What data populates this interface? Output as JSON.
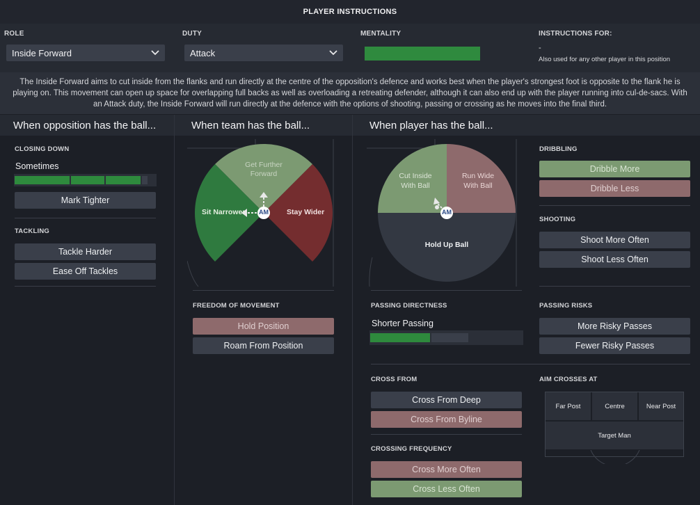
{
  "title": "PLAYER INSTRUCTIONS",
  "role": {
    "label": "ROLE",
    "value": "Inside Forward"
  },
  "duty": {
    "label": "DUTY",
    "value": "Attack"
  },
  "mentality": {
    "label": "MENTALITY",
    "level": 0.75,
    "color": "#2f8a3e"
  },
  "instructions_for": {
    "label": "INSTRUCTIONS FOR:",
    "value": "-",
    "note": "Also used for any other player in this position"
  },
  "description": "The Inside Forward aims to cut inside from the flanks and run directly at the centre of the opposition's defence and works best when the player's strongest foot is opposite to the flank he is playing on. This movement can open up space for overlapping full backs as well as overloading a retreating defender, although it can also end up with the player running into cul-de-sacs. With an Attack duty, the Inside Forward will run directly at the defence with the options of shooting, passing or crossing as he moves into the final third.",
  "opposition": {
    "heading": "When opposition has the ball...",
    "closing_down": {
      "label": "CLOSING DOWN",
      "value": "Sometimes",
      "level": 3
    },
    "mark_tighter": "Mark Tighter",
    "tackling": {
      "label": "TACKLING",
      "harder": "Tackle Harder",
      "ease_off": "Ease Off Tackles"
    }
  },
  "team": {
    "heading": "When team has the ball...",
    "pitch": {
      "further_forward": "Get Further Forward",
      "narrower": "Sit Narrower",
      "wider": "Stay Wider",
      "position": "AM"
    },
    "freedom": {
      "label": "FREEDOM OF MOVEMENT",
      "hold": "Hold Position",
      "roam": "Roam From Position"
    }
  },
  "player": {
    "heading": "When player has the ball...",
    "pitch": {
      "cut_inside": "Cut Inside With Ball",
      "run_wide": "Run Wide With Ball",
      "hold_up": "Hold Up Ball",
      "position": "AM"
    },
    "dribbling": {
      "label": "DRIBBLING",
      "more": "Dribble More",
      "less": "Dribble Less"
    },
    "shooting": {
      "label": "SHOOTING",
      "more": "Shoot More Often",
      "less": "Shoot Less Often"
    },
    "passing_directness": {
      "label": "PASSING DIRECTNESS",
      "value": "Shorter Passing",
      "level": 2
    },
    "passing_risks": {
      "label": "PASSING RISKS",
      "more": "More Risky Passes",
      "fewer": "Fewer Risky Passes"
    },
    "cross_from": {
      "label": "CROSS FROM",
      "deep": "Cross From Deep",
      "byline": "Cross From Byline"
    },
    "crossing_frequency": {
      "label": "CROSSING FREQUENCY",
      "more": "Cross More Often",
      "less": "Cross Less Often"
    },
    "aim_crosses": {
      "label": "AIM CROSSES AT",
      "far_post": "Far Post",
      "centre": "Centre",
      "near_post": "Near Post",
      "target_man": "Target Man"
    }
  }
}
